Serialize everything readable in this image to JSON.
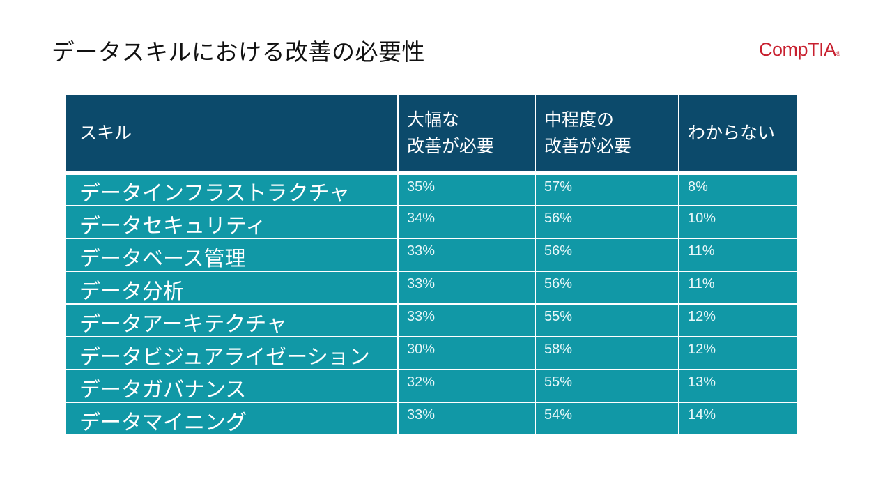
{
  "title": "データスキルにおける改善の必要性",
  "logo": {
    "text": "CompTIA",
    "mark": "®"
  },
  "table": {
    "headers": [
      {
        "lines": [
          "スキル"
        ]
      },
      {
        "lines": [
          "大幅な",
          "改善が必要"
        ]
      },
      {
        "lines": [
          "中程度の",
          "改善が必要"
        ]
      },
      {
        "lines": [
          "わからない"
        ]
      }
    ],
    "rows": [
      {
        "skill": "データインフラストラクチャ",
        "major": "35%",
        "moderate": "57%",
        "unknown": "8%"
      },
      {
        "skill": "データセキュリティ",
        "major": "34%",
        "moderate": "56%",
        "unknown": "10%"
      },
      {
        "skill": "データベース管理",
        "major": "33%",
        "moderate": "56%",
        "unknown": "11%"
      },
      {
        "skill": "データ分析",
        "major": "33%",
        "moderate": "56%",
        "unknown": "11%"
      },
      {
        "skill": "データアーキテクチャ",
        "major": "33%",
        "moderate": "55%",
        "unknown": "12%"
      },
      {
        "skill": "データビジュアライゼーション",
        "major": "30%",
        "moderate": "58%",
        "unknown": "12%"
      },
      {
        "skill": "データガバナンス",
        "major": "32%",
        "moderate": "55%",
        "unknown": "13%"
      },
      {
        "skill": "データマイニング",
        "major": "33%",
        "moderate": "54%",
        "unknown": "14%"
      }
    ]
  }
}
